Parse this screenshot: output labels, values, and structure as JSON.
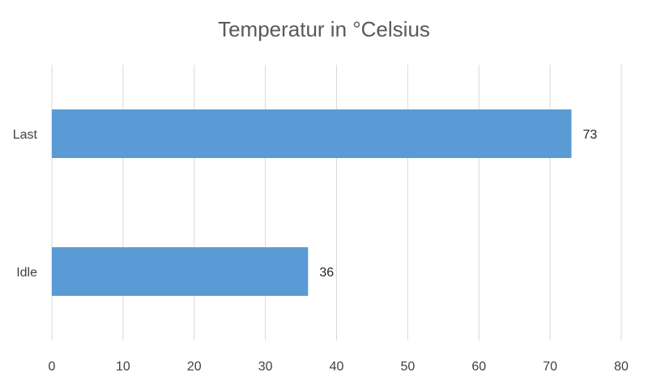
{
  "chart_data": {
    "type": "bar",
    "orientation": "horizontal",
    "title": "Temperatur in °Celsius",
    "categories": [
      "Last",
      "Idle"
    ],
    "values": [
      73,
      36
    ],
    "data_labels": [
      "73",
      "36"
    ],
    "xlim": [
      0,
      80
    ],
    "x_ticks": [
      "0",
      "10",
      "20",
      "30",
      "40",
      "50",
      "60",
      "70",
      "80"
    ],
    "grid": true,
    "legend": "none",
    "bar_color": "#5b9bd5",
    "gridline_color": "#d9d9d9"
  }
}
